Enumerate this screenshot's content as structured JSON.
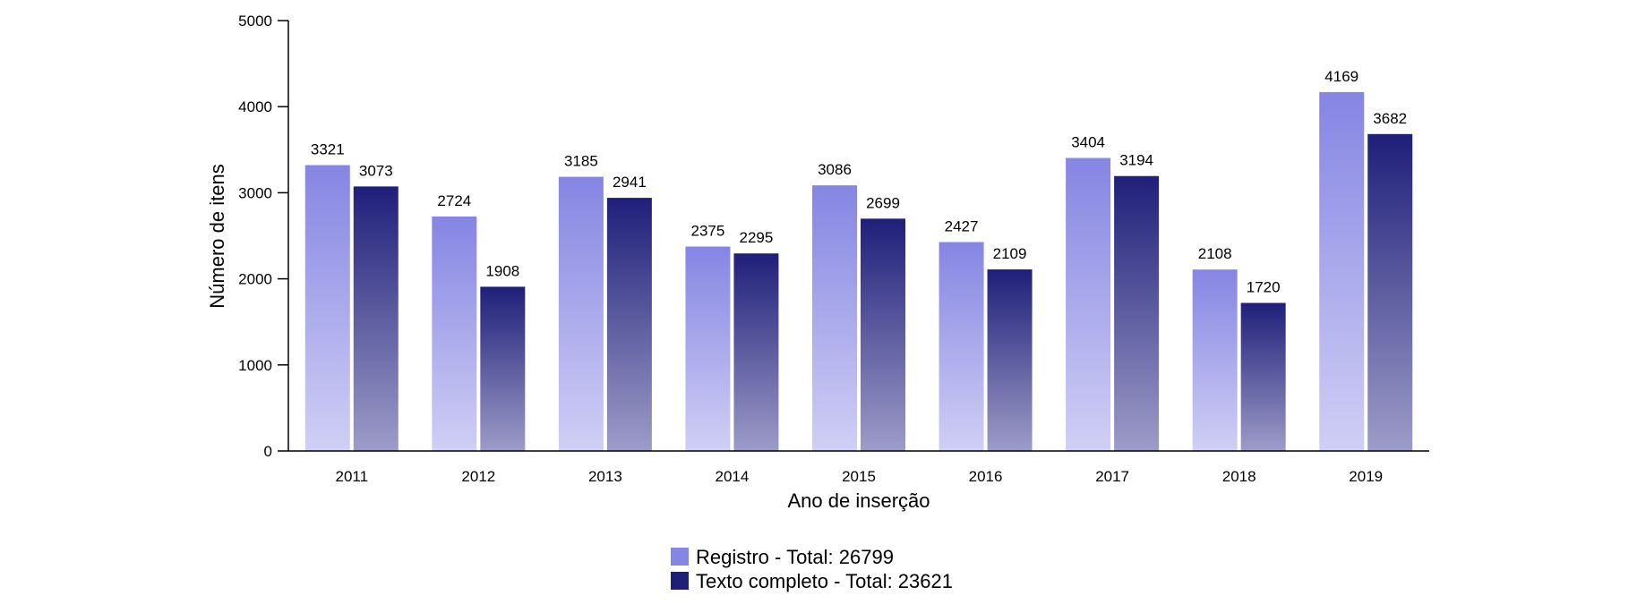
{
  "chart_data": {
    "type": "bar",
    "xlabel": "Ano de inserção",
    "ylabel": "Número de itens",
    "ylim": [
      0,
      5000
    ],
    "yticks": [
      0,
      1000,
      2000,
      3000,
      4000,
      5000
    ],
    "categories": [
      "2011",
      "2012",
      "2013",
      "2014",
      "2015",
      "2016",
      "2017",
      "2018",
      "2019"
    ],
    "series": [
      {
        "name": "Registro - Total: 26799",
        "values": [
          3321,
          2724,
          3185,
          2375,
          3086,
          2427,
          3404,
          2108,
          4169
        ],
        "color_top": "#8585e3",
        "color_bottom": "#d0cff5"
      },
      {
        "name": "Texto completo - Total: 23621",
        "values": [
          3073,
          1908,
          2941,
          2295,
          2699,
          2109,
          3194,
          1720,
          3682
        ],
        "color_top": "#1f1f7a",
        "color_bottom": "#9d9cc8"
      }
    ],
    "legend_position": "bottom-center",
    "grid": false
  }
}
